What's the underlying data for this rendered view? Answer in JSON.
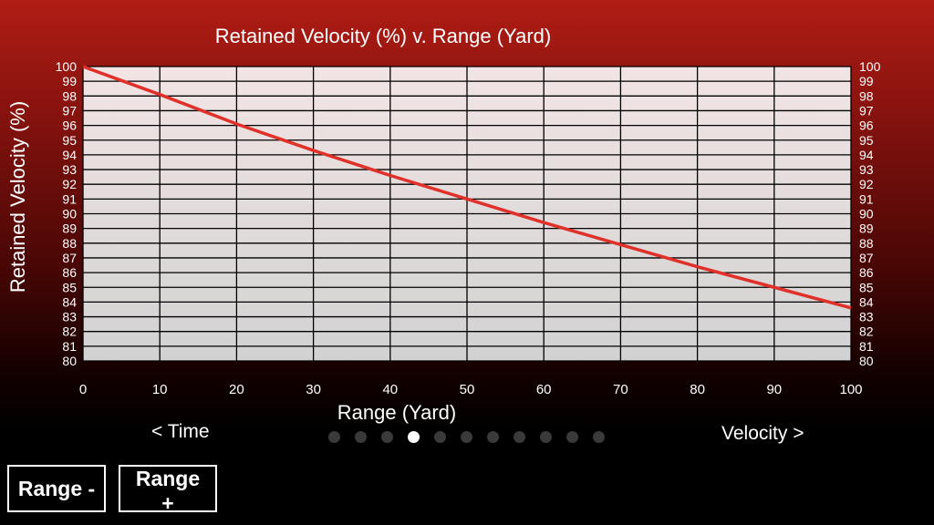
{
  "chart_data": {
    "type": "line",
    "title": "Retained Velocity (%) v. Range (Yard)",
    "xlabel": "Range (Yard)",
    "ylabel": "Retained Velocity (%)",
    "xlim": [
      0,
      100
    ],
    "ylim": [
      80,
      100
    ],
    "x_ticks": [
      0,
      10,
      20,
      30,
      40,
      50,
      60,
      70,
      80,
      90,
      100
    ],
    "y_ticks": [
      80,
      81,
      82,
      83,
      84,
      85,
      86,
      87,
      88,
      89,
      90,
      91,
      92,
      93,
      94,
      95,
      96,
      97,
      98,
      99,
      100
    ],
    "grid": true,
    "series": [
      {
        "color": "#e0302a",
        "x": [
          0,
          10,
          20,
          30,
          40,
          50,
          60,
          70,
          80,
          90,
          100
        ],
        "y": [
          100,
          98.1,
          96.1,
          94.3,
          92.6,
          91.0,
          89.4,
          87.9,
          86.4,
          85.0,
          83.6
        ]
      }
    ]
  },
  "nav": {
    "prev_label": "< Time",
    "next_label": "Velocity >",
    "page_count": 11,
    "current_page": 4
  },
  "buttons": {
    "range_minus": "Range -",
    "range_plus": "Range +"
  },
  "colors": {
    "plot_background_top": "#f2e4e4",
    "plot_background_bottom": "#d2d2d2",
    "grid": "#000000",
    "line": "#e0302a"
  }
}
